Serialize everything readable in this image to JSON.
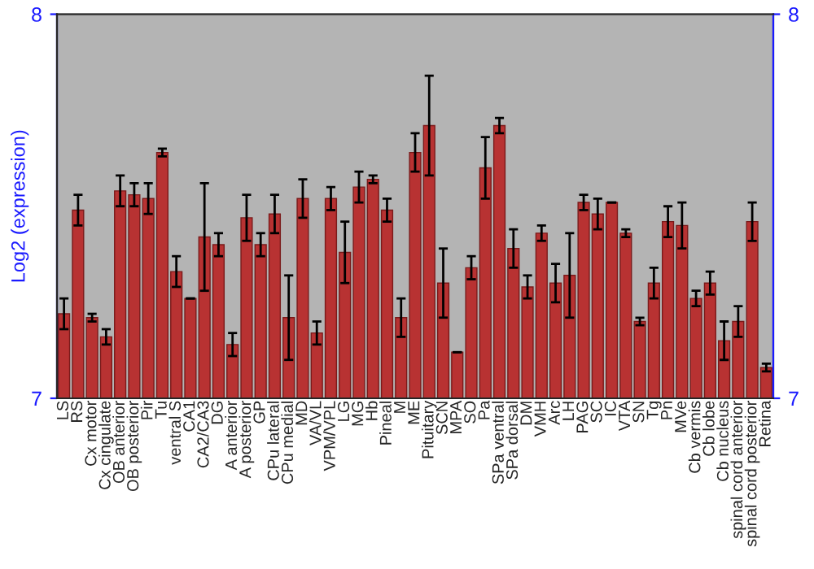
{
  "chart_data": {
    "type": "bar",
    "ylabel": "Log2 (expression)",
    "categories": [
      "LS",
      "RS",
      "Cx motor",
      "Cx cingulate",
      "OB anterior",
      "OB posterior",
      "Pir",
      "Tu",
      "ventral S",
      "CA1",
      "CA2/CA3",
      "DG",
      "A anterior",
      "A posterior",
      "GP",
      "CPu lateral",
      "CPu medial",
      "MD",
      "VA/VL",
      "VPM/VPL",
      "LG",
      "MG",
      "Hb",
      "Pineal",
      "M",
      "ME",
      "Pituitary",
      "SCN",
      "MPA",
      "SO",
      "Pa",
      "SPa ventral",
      "SPa dorsal",
      "DM",
      "VMH",
      "Arc",
      "LH",
      "PAG",
      "SC",
      "IC",
      "VTA",
      "SN",
      "Tg",
      "Pn",
      "MVe",
      "Cb vermis",
      "Cb lobe",
      "Cb nucleus",
      "spinal cord anterior",
      "spinal cord posterior",
      "Retina"
    ],
    "values": [
      7.22,
      7.49,
      7.21,
      7.16,
      7.54,
      7.53,
      7.52,
      7.64,
      7.33,
      7.26,
      7.42,
      7.4,
      7.14,
      7.47,
      7.4,
      7.48,
      7.21,
      7.52,
      7.17,
      7.52,
      7.38,
      7.55,
      7.57,
      7.49,
      7.21,
      7.64,
      7.71,
      7.3,
      7.12,
      7.34,
      7.6,
      7.71,
      7.39,
      7.29,
      7.43,
      7.3,
      7.32,
      7.51,
      7.48,
      7.51,
      7.43,
      7.2,
      7.3,
      7.46,
      7.45,
      7.26,
      7.3,
      7.15,
      7.2,
      7.46,
      7.08
    ],
    "errors": [
      0.04,
      0.04,
      0.01,
      0.02,
      0.04,
      0.03,
      0.04,
      0.01,
      0.04,
      0.0,
      0.14,
      0.03,
      0.03,
      0.06,
      0.03,
      0.05,
      0.11,
      0.05,
      0.03,
      0.03,
      0.08,
      0.04,
      0.01,
      0.03,
      0.05,
      0.05,
      0.13,
      0.09,
      0.0,
      0.03,
      0.08,
      0.02,
      0.05,
      0.03,
      0.02,
      0.05,
      0.11,
      0.02,
      0.04,
      0.0,
      0.01,
      0.01,
      0.04,
      0.04,
      0.06,
      0.02,
      0.03,
      0.05,
      0.04,
      0.05,
      0.01
    ],
    "color": "#b83232",
    "ylim": [
      7,
      8
    ],
    "yticks": [
      7,
      8
    ],
    "y2lim": [
      7,
      8
    ],
    "y2ticks": [
      7,
      8
    ],
    "grid": false,
    "legend": false
  }
}
